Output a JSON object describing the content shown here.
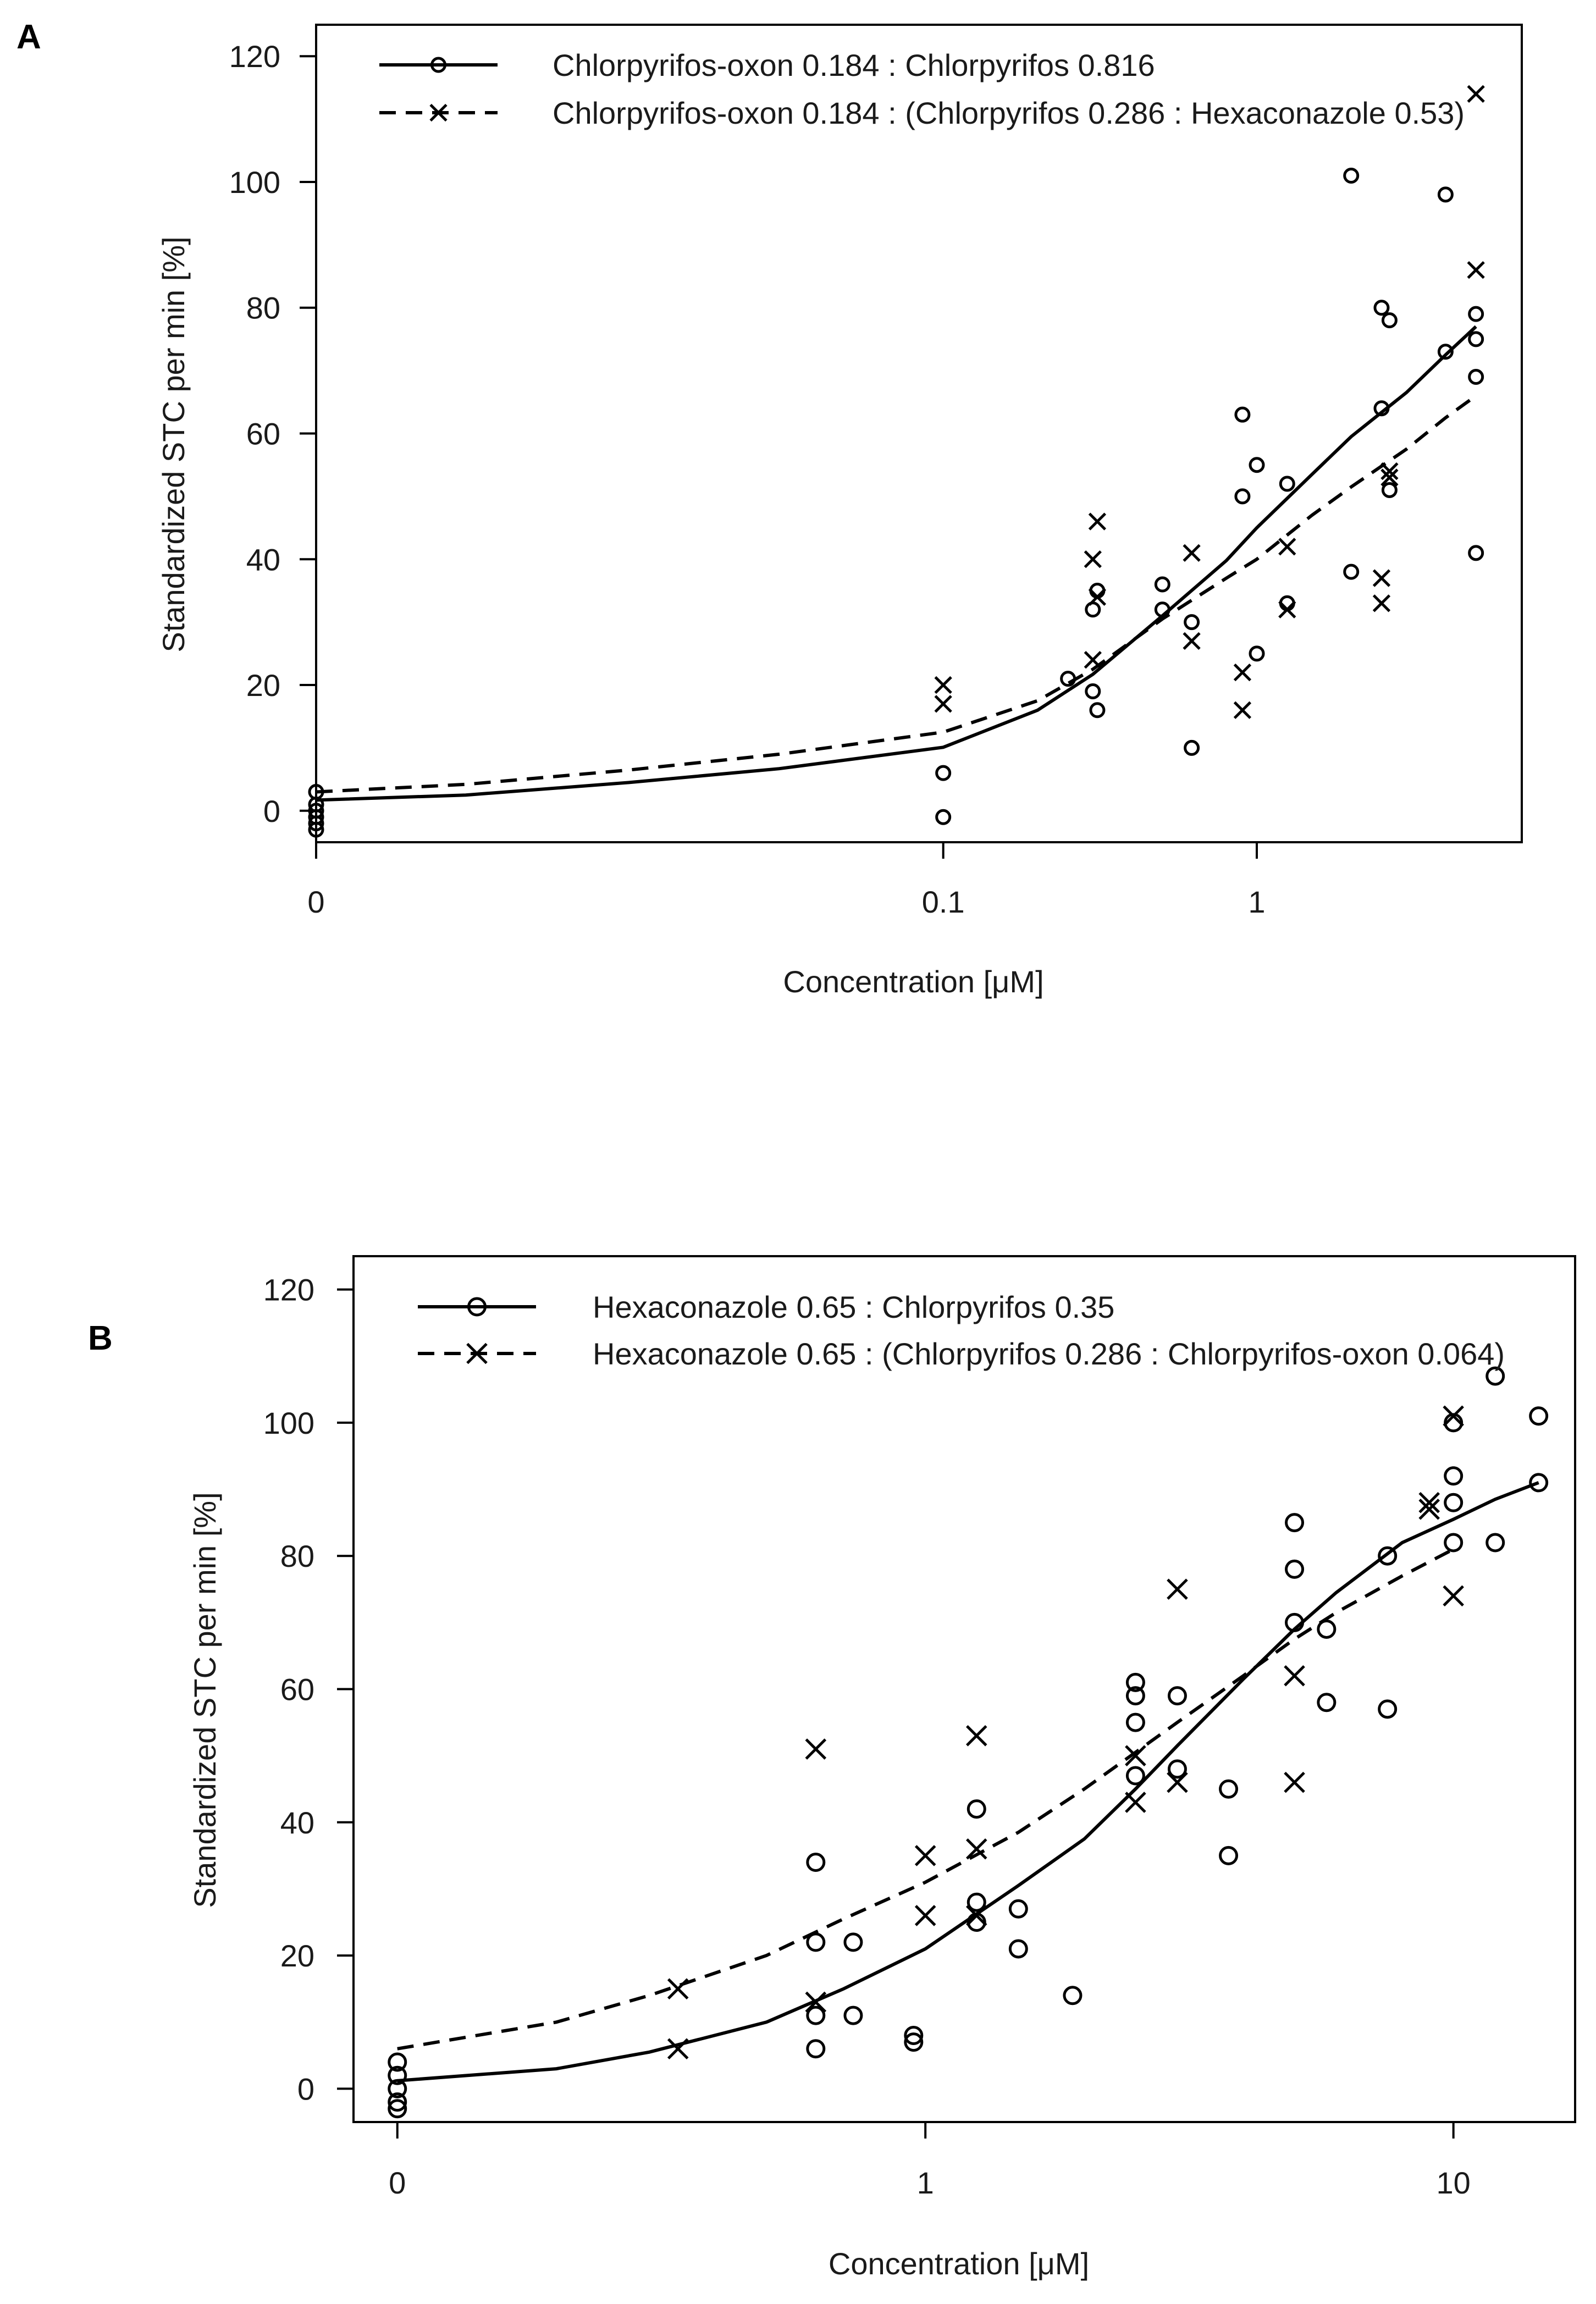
{
  "figure": {
    "panel_labels": [
      "A",
      "B"
    ]
  },
  "chart_data": [
    {
      "type": "scatter",
      "panel": "A",
      "xlabel": "Concentration [μM]",
      "ylabel": "Standardized STC per min [%]",
      "x_scale": "log10 with zero placed at 0.001",
      "xlim": [
        0.001,
        7
      ],
      "ylim": [
        -5,
        125
      ],
      "x_ticks": [
        {
          "value": 0.001,
          "label": "0"
        },
        {
          "value": 0.1,
          "label": "0.1"
        },
        {
          "value": 1,
          "label": "1"
        }
      ],
      "y_ticks": [
        {
          "value": 0,
          "label": "0"
        },
        {
          "value": 20,
          "label": "20"
        },
        {
          "value": 40,
          "label": "40"
        },
        {
          "value": 60,
          "label": "60"
        },
        {
          "value": 80,
          "label": "80"
        },
        {
          "value": 100,
          "label": "100"
        },
        {
          "value": 120,
          "label": "120"
        }
      ],
      "legend_position": "top-left",
      "series": [
        {
          "name": "Chlorpyrifos-oxon 0.184 : Chlorpyrifos 0.816",
          "marker": "circle",
          "line": "solid",
          "points": [
            [
              0.001,
              3
            ],
            [
              0.001,
              1
            ],
            [
              0.001,
              0
            ],
            [
              0.001,
              -1
            ],
            [
              0.001,
              -2
            ],
            [
              0.001,
              -3
            ],
            [
              0.1,
              6
            ],
            [
              0.1,
              -1
            ],
            [
              0.25,
              21
            ],
            [
              0.3,
              19
            ],
            [
              0.3,
              32
            ],
            [
              0.31,
              35
            ],
            [
              0.31,
              16
            ],
            [
              0.5,
              36
            ],
            [
              0.5,
              32
            ],
            [
              0.62,
              30
            ],
            [
              0.62,
              10
            ],
            [
              0.9,
              63
            ],
            [
              0.9,
              50
            ],
            [
              1.0,
              55
            ],
            [
              1.0,
              25
            ],
            [
              1.25,
              52
            ],
            [
              1.25,
              33
            ],
            [
              2.0,
              101
            ],
            [
              2.0,
              38
            ],
            [
              2.5,
              80
            ],
            [
              2.5,
              64
            ],
            [
              2.65,
              78
            ],
            [
              2.65,
              51
            ],
            [
              4.0,
              98
            ],
            [
              4.0,
              73
            ],
            [
              5.0,
              79
            ],
            [
              5.0,
              75
            ],
            [
              5.0,
              69
            ],
            [
              5.0,
              41
            ]
          ],
          "fit": [
            [
              0.001,
              1.7
            ],
            [
              0.003,
              2.5
            ],
            [
              0.01,
              4.5
            ],
            [
              0.03,
              6.7
            ],
            [
              0.1,
              10.1
            ],
            [
              0.2,
              16.0
            ],
            [
              0.3,
              21.7
            ],
            [
              0.5,
              31.0
            ],
            [
              0.8,
              39.8
            ],
            [
              1.0,
              45.0
            ],
            [
              1.5,
              53.5
            ],
            [
              2.0,
              59.5
            ],
            [
              3.0,
              66.5
            ],
            [
              4.0,
              72.5
            ],
            [
              5.0,
              77.0
            ]
          ]
        },
        {
          "name": "Chlorpyrifos-oxon 0.184 : (Chlorpyrifos 0.286 : Hexaconazole 0.53)",
          "marker": "cross",
          "line": "dashed",
          "points": [
            [
              0.1,
              20
            ],
            [
              0.1,
              17
            ],
            [
              0.3,
              40
            ],
            [
              0.3,
              24
            ],
            [
              0.31,
              34
            ],
            [
              0.31,
              46
            ],
            [
              0.62,
              41
            ],
            [
              0.62,
              27
            ],
            [
              0.9,
              22
            ],
            [
              0.9,
              16
            ],
            [
              1.25,
              42
            ],
            [
              1.25,
              32
            ],
            [
              2.5,
              37
            ],
            [
              2.5,
              33
            ],
            [
              2.65,
              54
            ],
            [
              2.65,
              53
            ],
            [
              5.0,
              114
            ],
            [
              5.0,
              86
            ]
          ],
          "fit": [
            [
              0.001,
              3.0
            ],
            [
              0.003,
              4.2
            ],
            [
              0.01,
              6.5
            ],
            [
              0.03,
              9.0
            ],
            [
              0.1,
              12.5
            ],
            [
              0.2,
              17.5
            ],
            [
              0.3,
              22.5
            ],
            [
              0.5,
              30.5
            ],
            [
              0.8,
              37.0
            ],
            [
              1.0,
              40.0
            ],
            [
              1.5,
              47.0
            ],
            [
              2.0,
              51.5
            ],
            [
              3.0,
              57.5
            ],
            [
              4.0,
              62.5
            ],
            [
              5.0,
              66.0
            ]
          ]
        }
      ]
    },
    {
      "type": "scatter",
      "panel": "B",
      "xlabel": "Concentration [μM]",
      "ylabel": "Standardized STC per min [%]",
      "x_scale": "log10 with zero placed at 0.1",
      "xlim": [
        0.0826,
        17
      ],
      "ylim": [
        -5,
        125
      ],
      "x_ticks": [
        {
          "value": 0.1,
          "label": "0"
        },
        {
          "value": 1,
          "label": "1"
        },
        {
          "value": 10,
          "label": "10"
        }
      ],
      "y_ticks": [
        {
          "value": 0,
          "label": "0"
        },
        {
          "value": 20,
          "label": "20"
        },
        {
          "value": 40,
          "label": "40"
        },
        {
          "value": 60,
          "label": "60"
        },
        {
          "value": 80,
          "label": "80"
        },
        {
          "value": 100,
          "label": "100"
        },
        {
          "value": 120,
          "label": "120"
        }
      ],
      "legend_position": "top-left",
      "series": [
        {
          "name": "Hexaconazole 0.65 : Chlorpyrifos 0.35",
          "marker": "circle",
          "line": "solid",
          "points": [
            [
              0.1,
              4
            ],
            [
              0.1,
              2
            ],
            [
              0.1,
              0
            ],
            [
              0.1,
              -2
            ],
            [
              0.1,
              -3
            ],
            [
              0.62,
              34
            ],
            [
              0.62,
              22
            ],
            [
              0.62,
              11
            ],
            [
              0.62,
              6
            ],
            [
              0.73,
              22
            ],
            [
              0.73,
              11
            ],
            [
              0.95,
              8
            ],
            [
              0.95,
              7
            ],
            [
              1.25,
              42
            ],
            [
              1.25,
              28
            ],
            [
              1.25,
              25
            ],
            [
              1.5,
              27
            ],
            [
              1.5,
              21
            ],
            [
              1.9,
              14
            ],
            [
              2.5,
              61
            ],
            [
              2.5,
              59
            ],
            [
              2.5,
              55
            ],
            [
              2.5,
              47
            ],
            [
              3.0,
              59
            ],
            [
              3.0,
              48
            ],
            [
              3.75,
              45
            ],
            [
              3.75,
              35
            ],
            [
              5.0,
              85
            ],
            [
              5.0,
              78
            ],
            [
              5.0,
              70
            ],
            [
              5.75,
              69
            ],
            [
              5.75,
              58
            ],
            [
              7.5,
              80
            ],
            [
              7.5,
              57
            ],
            [
              10.0,
              100
            ],
            [
              10.0,
              92
            ],
            [
              10.0,
              88
            ],
            [
              10.0,
              82
            ],
            [
              12.0,
              107
            ],
            [
              12.0,
              82
            ],
            [
              14.5,
              101
            ],
            [
              14.5,
              91
            ]
          ],
          "fit": [
            [
              0.1,
              1.2
            ],
            [
              0.2,
              3.0
            ],
            [
              0.3,
              5.5
            ],
            [
              0.5,
              10.0
            ],
            [
              0.7,
              15.0
            ],
            [
              1.0,
              21.0
            ],
            [
              1.5,
              30.5
            ],
            [
              2.0,
              37.5
            ],
            [
              2.5,
              45.0
            ],
            [
              3.0,
              51.5
            ],
            [
              4.0,
              61.5
            ],
            [
              5.0,
              69.0
            ],
            [
              6.0,
              74.5
            ],
            [
              8.0,
              82.0
            ],
            [
              10.0,
              85.5
            ],
            [
              12.0,
              88.5
            ],
            [
              14.5,
              91.0
            ]
          ]
        },
        {
          "name": "Hexaconazole 0.65 : (Chlorpyrifos 0.286 : Chlorpyrifos-oxon 0.064)",
          "marker": "cross",
          "line": "dashed",
          "points": [
            [
              0.34,
              15
            ],
            [
              0.34,
              6
            ],
            [
              0.62,
              51
            ],
            [
              0.62,
              13
            ],
            [
              1.0,
              35
            ],
            [
              1.0,
              26
            ],
            [
              1.25,
              53
            ],
            [
              1.25,
              36
            ],
            [
              1.25,
              26
            ],
            [
              2.5,
              50
            ],
            [
              2.5,
              43
            ],
            [
              3.0,
              75
            ],
            [
              3.0,
              46
            ],
            [
              5.0,
              62
            ],
            [
              5.0,
              46
            ],
            [
              9.0,
              88
            ],
            [
              9.0,
              87
            ],
            [
              10.0,
              101
            ],
            [
              10.0,
              74
            ]
          ],
          "fit": [
            [
              0.1,
              6.0
            ],
            [
              0.2,
              10.0
            ],
            [
              0.3,
              14.0
            ],
            [
              0.5,
              20.0
            ],
            [
              0.7,
              25.5
            ],
            [
              1.0,
              31.0
            ],
            [
              1.5,
              38.5
            ],
            [
              2.0,
              45.0
            ],
            [
              2.5,
              50.5
            ],
            [
              3.0,
              55.0
            ],
            [
              4.0,
              62.0
            ],
            [
              5.0,
              67.5
            ],
            [
              6.0,
              71.5
            ],
            [
              8.0,
              77.0
            ],
            [
              10.0,
              81.0
            ]
          ]
        }
      ]
    }
  ]
}
